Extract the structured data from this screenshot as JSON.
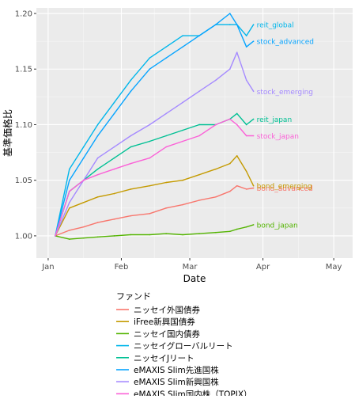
{
  "chart_data": {
    "type": "line",
    "xlabel": "Date",
    "ylabel": "基準価格比",
    "x_ticks": [
      "Jan",
      "Feb",
      "Mar",
      "Apr",
      "May"
    ],
    "x_tick_dates": [
      "2024-01-01",
      "2024-02-01",
      "2024-03-01",
      "2024-04-01",
      "2024-05-01"
    ],
    "xlim": [
      "2023-12-27",
      "2024-05-09"
    ],
    "ylim": [
      0.98,
      1.205
    ],
    "y_ticks": [
      1.0,
      1.05,
      1.1,
      1.15,
      1.2
    ],
    "y_tick_labels": [
      "1.00",
      "1.05",
      "1.10",
      "1.15",
      "1.20"
    ],
    "grid": true,
    "background": "#ebebeb",
    "legend_position": "bottom",
    "legend_title": "ファンド",
    "series": [
      {
        "name": "ニッセイ外国債券",
        "color": "#F8766D",
        "label": "bond_advanced",
        "x": [
          "2024-01-04",
          "2024-01-10",
          "2024-01-16",
          "2024-01-22",
          "2024-01-29",
          "2024-02-05",
          "2024-02-13",
          "2024-02-20",
          "2024-02-27",
          "2024-03-05",
          "2024-03-12",
          "2024-03-18",
          "2024-03-21",
          "2024-03-25",
          "2024-03-28"
        ],
        "y": [
          1.0,
          1.005,
          1.008,
          1.012,
          1.015,
          1.018,
          1.02,
          1.025,
          1.028,
          1.032,
          1.035,
          1.04,
          1.045,
          1.042,
          1.043
        ]
      },
      {
        "name": "iFree新興国債券",
        "color": "#C49A00",
        "label": "bond_emerging",
        "x": [
          "2024-01-04",
          "2024-01-10",
          "2024-01-16",
          "2024-01-22",
          "2024-01-29",
          "2024-02-05",
          "2024-02-13",
          "2024-02-20",
          "2024-02-27",
          "2024-03-05",
          "2024-03-12",
          "2024-03-18",
          "2024-03-21",
          "2024-03-25",
          "2024-03-28"
        ],
        "y": [
          1.0,
          1.025,
          1.03,
          1.035,
          1.038,
          1.042,
          1.045,
          1.048,
          1.05,
          1.055,
          1.06,
          1.065,
          1.072,
          1.058,
          1.045
        ]
      },
      {
        "name": "ニッセイ国内債券",
        "color": "#53B400",
        "label": "bond_japan",
        "x": [
          "2024-01-04",
          "2024-01-10",
          "2024-01-16",
          "2024-01-22",
          "2024-01-29",
          "2024-02-05",
          "2024-02-13",
          "2024-02-20",
          "2024-02-27",
          "2024-03-05",
          "2024-03-12",
          "2024-03-18",
          "2024-03-21",
          "2024-03-25",
          "2024-03-28"
        ],
        "y": [
          1.0,
          0.997,
          0.998,
          0.999,
          1.0,
          1.001,
          1.001,
          1.002,
          1.001,
          1.002,
          1.003,
          1.004,
          1.006,
          1.008,
          1.01
        ]
      },
      {
        "name": "ニッセイグローバルリート",
        "color": "#00B6EB",
        "label": "reit_global",
        "x": [
          "2024-01-04",
          "2024-01-10",
          "2024-01-16",
          "2024-01-22",
          "2024-01-29",
          "2024-02-05",
          "2024-02-13",
          "2024-02-20",
          "2024-02-27",
          "2024-03-05",
          "2024-03-12",
          "2024-03-18",
          "2024-03-21",
          "2024-03-25",
          "2024-03-28"
        ],
        "y": [
          1.0,
          1.06,
          1.08,
          1.1,
          1.12,
          1.14,
          1.16,
          1.17,
          1.18,
          1.18,
          1.19,
          1.19,
          1.19,
          1.18,
          1.19
        ]
      },
      {
        "name": "ニッセイJリート",
        "color": "#00C094",
        "label": "reit_japan",
        "x": [
          "2024-01-04",
          "2024-01-10",
          "2024-01-16",
          "2024-01-22",
          "2024-01-29",
          "2024-02-05",
          "2024-02-13",
          "2024-02-20",
          "2024-02-27",
          "2024-03-05",
          "2024-03-12",
          "2024-03-18",
          "2024-03-21",
          "2024-03-25",
          "2024-03-28"
        ],
        "y": [
          1.0,
          1.04,
          1.05,
          1.06,
          1.07,
          1.08,
          1.085,
          1.09,
          1.095,
          1.1,
          1.1,
          1.105,
          1.11,
          1.1,
          1.105
        ]
      },
      {
        "name": "eMAXIS Slim先進国株",
        "color": "#06A4FF",
        "label": "stock_advanced",
        "x": [
          "2024-01-04",
          "2024-01-10",
          "2024-01-16",
          "2024-01-22",
          "2024-01-29",
          "2024-02-05",
          "2024-02-13",
          "2024-02-20",
          "2024-02-27",
          "2024-03-05",
          "2024-03-12",
          "2024-03-18",
          "2024-03-21",
          "2024-03-25",
          "2024-03-28"
        ],
        "y": [
          1.0,
          1.05,
          1.07,
          1.09,
          1.11,
          1.13,
          1.15,
          1.16,
          1.17,
          1.18,
          1.19,
          1.2,
          1.19,
          1.17,
          1.175
        ]
      },
      {
        "name": "eMAXIS Slim新興国株",
        "color": "#A58AFF",
        "label": "stock_emerging",
        "x": [
          "2024-01-04",
          "2024-01-10",
          "2024-01-16",
          "2024-01-22",
          "2024-01-29",
          "2024-02-05",
          "2024-02-13",
          "2024-02-20",
          "2024-02-27",
          "2024-03-05",
          "2024-03-12",
          "2024-03-18",
          "2024-03-21",
          "2024-03-25",
          "2024-03-28"
        ],
        "y": [
          1.0,
          1.03,
          1.05,
          1.07,
          1.08,
          1.09,
          1.1,
          1.11,
          1.12,
          1.13,
          1.14,
          1.15,
          1.165,
          1.14,
          1.13
        ]
      },
      {
        "name": "eMAXIS Slim国内株（TOPIX）",
        "color": "#FB61D7",
        "label": "stock_japan",
        "x": [
          "2024-01-04",
          "2024-01-10",
          "2024-01-16",
          "2024-01-22",
          "2024-01-29",
          "2024-02-05",
          "2024-02-13",
          "2024-02-20",
          "2024-02-27",
          "2024-03-05",
          "2024-03-12",
          "2024-03-18",
          "2024-03-21",
          "2024-03-25",
          "2024-03-28"
        ],
        "y": [
          1.0,
          1.04,
          1.05,
          1.055,
          1.06,
          1.065,
          1.07,
          1.08,
          1.085,
          1.09,
          1.1,
          1.105,
          1.1,
          1.09,
          1.09
        ]
      }
    ]
  }
}
